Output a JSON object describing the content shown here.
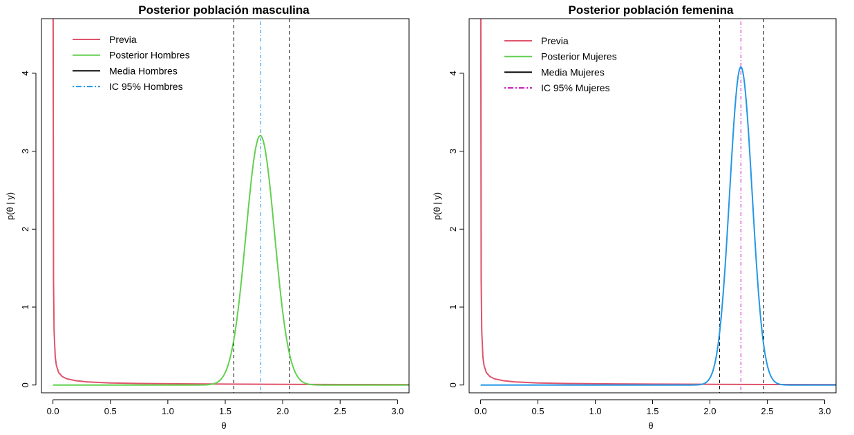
{
  "chart_data": [
    {
      "type": "line",
      "title": "Posterior población masculina",
      "xlabel": "θ",
      "ylabel": "p(θ | y)",
      "xlim": [
        -0.1,
        3.1
      ],
      "ylim": [
        -0.1,
        4.7
      ],
      "xticks": [
        0.0,
        0.5,
        1.0,
        1.5,
        2.0,
        2.5,
        3.0
      ],
      "xtick_labels": [
        "0.0",
        "0.5",
        "1.0",
        "1.5",
        "2.0",
        "2.5",
        "3.0"
      ],
      "yticks": [
        0,
        1,
        2,
        3,
        4
      ],
      "ytick_labels": [
        "0",
        "1",
        "2",
        "3",
        "4"
      ],
      "grid": false,
      "legend_position": "top-left",
      "legend": [
        {
          "label": "Previa",
          "color": "#DF536B",
          "style": "solid"
        },
        {
          "label": "Posterior Hombres",
          "color": "#61D04F",
          "style": "solid"
        },
        {
          "label": "Media Hombres",
          "color": "#000000",
          "style": "solid"
        },
        {
          "label": "IC 95% Hombres",
          "color": "#2297E6",
          "style": "dotdash"
        }
      ],
      "series": [
        {
          "kind": "prior",
          "color": "#DF536B",
          "x": [
            0.001,
            0.003,
            0.005,
            0.01,
            0.02,
            0.03,
            0.05,
            0.08,
            0.12,
            0.2,
            0.3,
            0.5,
            0.75,
            1.0,
            1.5,
            2.0,
            2.5,
            3.1
          ],
          "y": [
            5.5,
            3.4,
            1.35,
            0.69,
            0.36,
            0.25,
            0.16,
            0.11,
            0.08,
            0.055,
            0.04,
            0.027,
            0.02,
            0.016,
            0.012,
            0.009,
            0.007,
            0.005
          ]
        },
        {
          "kind": "posterior",
          "color": "#61D04F",
          "mean": 1.805,
          "peak": 3.2
        }
      ],
      "vlines": [
        {
          "kind": "ci",
          "x": 1.575,
          "color": "#000000",
          "style": "dashed"
        },
        {
          "kind": "ci",
          "x": 2.06,
          "color": "#000000",
          "style": "dashed"
        },
        {
          "kind": "mean",
          "x": 1.81,
          "color": "#2297E6",
          "style": "dotdash"
        }
      ]
    },
    {
      "type": "line",
      "title": "Posterior población femenina",
      "xlabel": "θ",
      "ylabel": "p(θ | y)",
      "xlim": [
        -0.1,
        3.1
      ],
      "ylim": [
        -0.1,
        4.7
      ],
      "xticks": [
        0.0,
        0.5,
        1.0,
        1.5,
        2.0,
        2.5,
        3.0
      ],
      "xtick_labels": [
        "0.0",
        "0.5",
        "1.0",
        "1.5",
        "2.0",
        "2.5",
        "3.0"
      ],
      "yticks": [
        0,
        1,
        2,
        3,
        4
      ],
      "ytick_labels": [
        "0",
        "1",
        "2",
        "3",
        "4"
      ],
      "grid": false,
      "legend_position": "top-left",
      "legend": [
        {
          "label": "Previa",
          "color": "#DF536B",
          "style": "solid"
        },
        {
          "label": "Posterior Mujeres",
          "color": "#61D04F",
          "style": "solid"
        },
        {
          "label": "Media Mujeres",
          "color": "#000000",
          "style": "solid"
        },
        {
          "label": "IC 95% Mujeres",
          "color": "#CD0BBC",
          "style": "dotdash"
        }
      ],
      "series": [
        {
          "kind": "prior",
          "color": "#DF536B",
          "x": [
            0.001,
            0.003,
            0.005,
            0.01,
            0.02,
            0.03,
            0.05,
            0.08,
            0.12,
            0.2,
            0.3,
            0.5,
            0.75,
            1.0,
            1.5,
            2.0,
            2.5,
            3.1
          ],
          "y": [
            5.5,
            3.4,
            1.35,
            0.69,
            0.36,
            0.25,
            0.16,
            0.11,
            0.08,
            0.055,
            0.04,
            0.027,
            0.02,
            0.016,
            0.012,
            0.009,
            0.007,
            0.005
          ]
        },
        {
          "kind": "posterior",
          "color": "#2297E6",
          "mean": 2.27,
          "peak": 4.08
        }
      ],
      "vlines": [
        {
          "kind": "ci",
          "x": 2.085,
          "color": "#000000",
          "style": "dashed"
        },
        {
          "kind": "ci",
          "x": 2.47,
          "color": "#000000",
          "style": "dashed"
        },
        {
          "kind": "mean",
          "x": 2.27,
          "color": "#CD0BBC",
          "style": "dotdash"
        }
      ]
    }
  ]
}
